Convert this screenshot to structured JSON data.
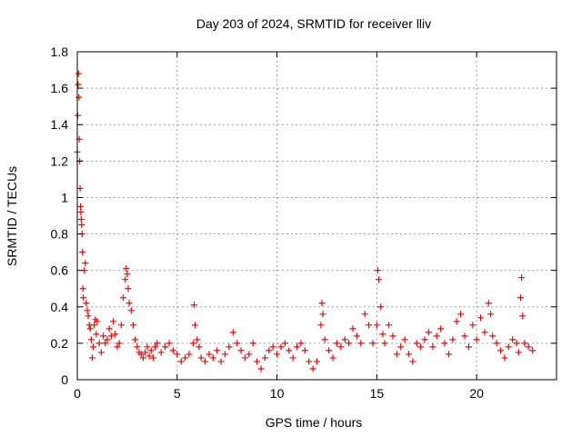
{
  "chart_data": {
    "type": "scatter",
    "title": "Day 203 of 2024, SRMTID for receiver lliv",
    "xlabel": "GPS time / hours",
    "ylabel": "SRMTID / TECUs",
    "xlim": [
      0,
      24
    ],
    "ylim": [
      0,
      1.8
    ],
    "x_ticks": [
      0,
      5,
      10,
      15,
      20
    ],
    "y_ticks": [
      0,
      0.2,
      0.4,
      0.6,
      0.8,
      1,
      1.2,
      1.4,
      1.6,
      1.8
    ],
    "x_tick_labels": [
      "0",
      "5",
      "10",
      "15",
      "20"
    ],
    "y_tick_labels": [
      "0",
      "0.2",
      "0.4",
      "0.6",
      "0.8",
      "1",
      "1.2",
      "1.4",
      "1.6",
      "1.8"
    ],
    "grid": true,
    "marker": "+",
    "color": "#ff0000",
    "series": [
      {
        "name": "SRMTID",
        "points": [
          [
            0.0,
            1.25
          ],
          [
            0.02,
            1.45
          ],
          [
            0.04,
            1.62
          ],
          [
            0.06,
            1.68
          ],
          [
            0.08,
            1.55
          ],
          [
            0.1,
            1.32
          ],
          [
            0.12,
            1.2
          ],
          [
            0.14,
            1.05
          ],
          [
            0.16,
            0.95
          ],
          [
            0.18,
            0.92
          ],
          [
            0.2,
            0.88
          ],
          [
            0.22,
            0.85
          ],
          [
            0.24,
            0.8
          ],
          [
            0.26,
            0.7
          ],
          [
            0.28,
            0.5
          ],
          [
            0.3,
            0.45
          ],
          [
            0.35,
            0.6
          ],
          [
            0.4,
            0.64
          ],
          [
            0.45,
            0.42
          ],
          [
            0.5,
            0.38
          ],
          [
            0.55,
            0.35
          ],
          [
            0.6,
            0.3
          ],
          [
            0.65,
            0.28
          ],
          [
            0.7,
            0.22
          ],
          [
            0.75,
            0.12
          ],
          [
            0.8,
            0.18
          ],
          [
            0.85,
            0.3
          ],
          [
            0.9,
            0.33
          ],
          [
            0.95,
            0.25
          ],
          [
            1.0,
            0.32
          ],
          [
            1.1,
            0.2
          ],
          [
            1.2,
            0.15
          ],
          [
            1.3,
            0.24
          ],
          [
            1.4,
            0.2
          ],
          [
            1.5,
            0.22
          ],
          [
            1.6,
            0.28
          ],
          [
            1.7,
            0.24
          ],
          [
            1.8,
            0.32
          ],
          [
            1.9,
            0.25
          ],
          [
            2.0,
            0.18
          ],
          [
            2.1,
            0.2
          ],
          [
            2.2,
            0.3
          ],
          [
            2.3,
            0.45
          ],
          [
            2.4,
            0.55
          ],
          [
            2.45,
            0.61
          ],
          [
            2.5,
            0.58
          ],
          [
            2.55,
            0.5
          ],
          [
            2.6,
            0.42
          ],
          [
            2.7,
            0.38
          ],
          [
            2.8,
            0.3
          ],
          [
            2.9,
            0.22
          ],
          [
            3.0,
            0.18
          ],
          [
            3.1,
            0.15
          ],
          [
            3.2,
            0.14
          ],
          [
            3.3,
            0.12
          ],
          [
            3.4,
            0.15
          ],
          [
            3.5,
            0.18
          ],
          [
            3.6,
            0.13
          ],
          [
            3.7,
            0.16
          ],
          [
            3.8,
            0.12
          ],
          [
            3.9,
            0.18
          ],
          [
            4.0,
            0.2
          ],
          [
            4.2,
            0.15
          ],
          [
            4.4,
            0.18
          ],
          [
            4.6,
            0.2
          ],
          [
            4.8,
            0.16
          ],
          [
            5.0,
            0.14
          ],
          [
            5.2,
            0.1
          ],
          [
            5.4,
            0.12
          ],
          [
            5.6,
            0.14
          ],
          [
            5.8,
            0.2
          ],
          [
            5.85,
            0.41
          ],
          [
            5.9,
            0.3
          ],
          [
            6.0,
            0.22
          ],
          [
            6.1,
            0.18
          ],
          [
            6.2,
            0.12
          ],
          [
            6.4,
            0.1
          ],
          [
            6.6,
            0.14
          ],
          [
            6.8,
            0.12
          ],
          [
            7.0,
            0.16
          ],
          [
            7.2,
            0.1
          ],
          [
            7.4,
            0.14
          ],
          [
            7.6,
            0.18
          ],
          [
            7.8,
            0.26
          ],
          [
            8.0,
            0.2
          ],
          [
            8.2,
            0.16
          ],
          [
            8.4,
            0.12
          ],
          [
            8.6,
            0.14
          ],
          [
            8.8,
            0.2
          ],
          [
            9.0,
            0.1
          ],
          [
            9.2,
            0.06
          ],
          [
            9.4,
            0.12
          ],
          [
            9.6,
            0.16
          ],
          [
            9.8,
            0.18
          ],
          [
            10.0,
            0.14
          ],
          [
            10.2,
            0.18
          ],
          [
            10.4,
            0.2
          ],
          [
            10.6,
            0.16
          ],
          [
            10.8,
            0.12
          ],
          [
            11.0,
            0.18
          ],
          [
            11.2,
            0.2
          ],
          [
            11.4,
            0.16
          ],
          [
            11.6,
            0.1
          ],
          [
            11.8,
            0.06
          ],
          [
            12.0,
            0.1
          ],
          [
            12.2,
            0.3
          ],
          [
            12.25,
            0.42
          ],
          [
            12.3,
            0.36
          ],
          [
            12.4,
            0.22
          ],
          [
            12.6,
            0.16
          ],
          [
            12.8,
            0.12
          ],
          [
            13.0,
            0.2
          ],
          [
            13.2,
            0.18
          ],
          [
            13.4,
            0.22
          ],
          [
            13.6,
            0.2
          ],
          [
            13.8,
            0.28
          ],
          [
            14.0,
            0.24
          ],
          [
            14.2,
            0.2
          ],
          [
            14.4,
            0.36
          ],
          [
            14.6,
            0.3
          ],
          [
            14.8,
            0.2
          ],
          [
            15.0,
            0.3
          ],
          [
            15.05,
            0.6
          ],
          [
            15.1,
            0.55
          ],
          [
            15.2,
            0.4
          ],
          [
            15.3,
            0.25
          ],
          [
            15.4,
            0.2
          ],
          [
            15.6,
            0.3
          ],
          [
            15.8,
            0.24
          ],
          [
            16.0,
            0.14
          ],
          [
            16.2,
            0.18
          ],
          [
            16.4,
            0.22
          ],
          [
            16.6,
            0.14
          ],
          [
            16.8,
            0.1
          ],
          [
            17.0,
            0.2
          ],
          [
            17.2,
            0.18
          ],
          [
            17.4,
            0.22
          ],
          [
            17.6,
            0.26
          ],
          [
            17.8,
            0.18
          ],
          [
            18.0,
            0.24
          ],
          [
            18.2,
            0.28
          ],
          [
            18.4,
            0.2
          ],
          [
            18.6,
            0.14
          ],
          [
            18.8,
            0.22
          ],
          [
            19.0,
            0.32
          ],
          [
            19.2,
            0.36
          ],
          [
            19.4,
            0.24
          ],
          [
            19.6,
            0.18
          ],
          [
            19.8,
            0.3
          ],
          [
            20.0,
            0.22
          ],
          [
            20.2,
            0.34
          ],
          [
            20.4,
            0.26
          ],
          [
            20.6,
            0.42
          ],
          [
            20.7,
            0.36
          ],
          [
            20.8,
            0.24
          ],
          [
            21.0,
            0.2
          ],
          [
            21.2,
            0.16
          ],
          [
            21.4,
            0.12
          ],
          [
            21.6,
            0.18
          ],
          [
            21.8,
            0.22
          ],
          [
            22.0,
            0.2
          ],
          [
            22.1,
            0.15
          ],
          [
            22.2,
            0.45
          ],
          [
            22.25,
            0.56
          ],
          [
            22.3,
            0.35
          ],
          [
            22.4,
            0.2
          ],
          [
            22.6,
            0.18
          ],
          [
            22.8,
            0.16
          ]
        ]
      }
    ]
  }
}
